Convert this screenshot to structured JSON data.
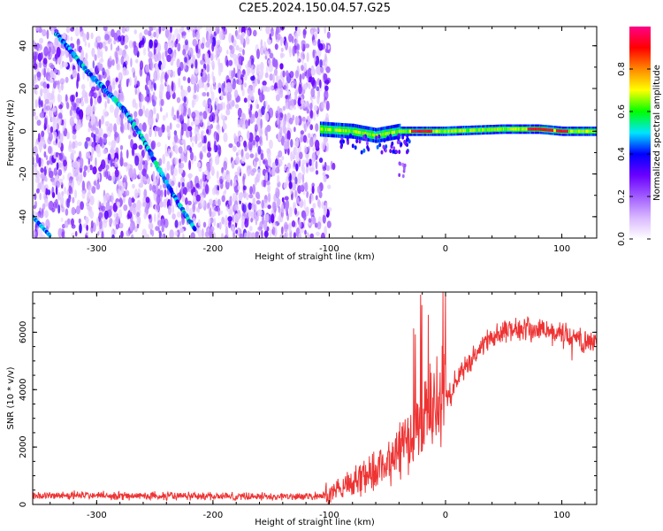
{
  "figure": {
    "title": "C2E5.2024.150.04.57.G25"
  },
  "chart_data": [
    {
      "type": "heatmap",
      "title": "",
      "xlabel": "Height of straight line (km)",
      "ylabel": "Frequency (Hz)",
      "xlim": [
        -355,
        130
      ],
      "ylim": [
        -50,
        49
      ],
      "xticks": [
        -300,
        -200,
        -100,
        0,
        100
      ],
      "yticks": [
        -40,
        -20,
        0,
        20,
        40
      ],
      "grid": false,
      "noise_region_x": [
        -355,
        -100
      ],
      "doppler_trace": [
        {
          "x": -335,
          "y": 46
        },
        {
          "x": -320,
          "y": 36
        },
        {
          "x": -305,
          "y": 26
        },
        {
          "x": -290,
          "y": 18
        },
        {
          "x": -275,
          "y": 9
        },
        {
          "x": -262,
          "y": -2
        },
        {
          "x": -250,
          "y": -14
        },
        {
          "x": -235,
          "y": -29
        },
        {
          "x": -225,
          "y": -38
        },
        {
          "x": -215,
          "y": -46
        }
      ],
      "carrier_trace": [
        {
          "x": -108,
          "y": 1
        },
        {
          "x": -80,
          "y": 0
        },
        {
          "x": -60,
          "y": -2
        },
        {
          "x": -40,
          "y": 0
        },
        {
          "x": 0,
          "y": 0
        },
        {
          "x": 50,
          "y": 1
        },
        {
          "x": 80,
          "y": 1
        },
        {
          "x": 100,
          "y": 0
        },
        {
          "x": 130,
          "y": 0
        }
      ],
      "colorbar": {
        "label": "Normalized spectral amplitude",
        "range": [
          0,
          1
        ],
        "ticks": [
          0.0,
          0.2,
          0.4,
          0.6,
          0.8
        ],
        "tick_labels": [
          "0.0",
          "0.2",
          "0.4",
          "0.6",
          "0.8"
        ],
        "colors": [
          "#ffffff",
          "#d9b8ff",
          "#a05cff",
          "#6a00ff",
          "#0000ff",
          "#00e5ff",
          "#00ff00",
          "#ffff00",
          "#ff8800",
          "#ff0000",
          "#ff0088"
        ]
      }
    },
    {
      "type": "line",
      "title": "",
      "xlabel": "Height of straight line (km)",
      "ylabel": "SNR (10 * v/v)",
      "xlim": [
        -355,
        130
      ],
      "ylim": [
        0,
        7400
      ],
      "xticks": [
        -300,
        -200,
        -100,
        0,
        100
      ],
      "yticks": [
        0,
        2000,
        4000,
        6000
      ],
      "grid": false,
      "line_color": "#ee3333",
      "series": [
        {
          "x": [
            -355,
            -320,
            -280,
            -240,
            -200,
            -160,
            -120,
            -105,
            -95,
            -85,
            -75,
            -65,
            -55,
            -45,
            -35,
            -25,
            -15,
            -5,
            0,
            5,
            10,
            20,
            30,
            40,
            50,
            60,
            70,
            80,
            90,
            100,
            110,
            120,
            130
          ],
          "values": [
            300,
            320,
            300,
            290,
            290,
            280,
            270,
            300,
            400,
            700,
            900,
            1100,
            1300,
            1700,
            2100,
            2600,
            3200,
            3600,
            3700,
            3900,
            4400,
            5000,
            5500,
            5800,
            6000,
            6100,
            6100,
            6100,
            6000,
            5900,
            5800,
            5700,
            5600
          ]
        }
      ]
    }
  ]
}
